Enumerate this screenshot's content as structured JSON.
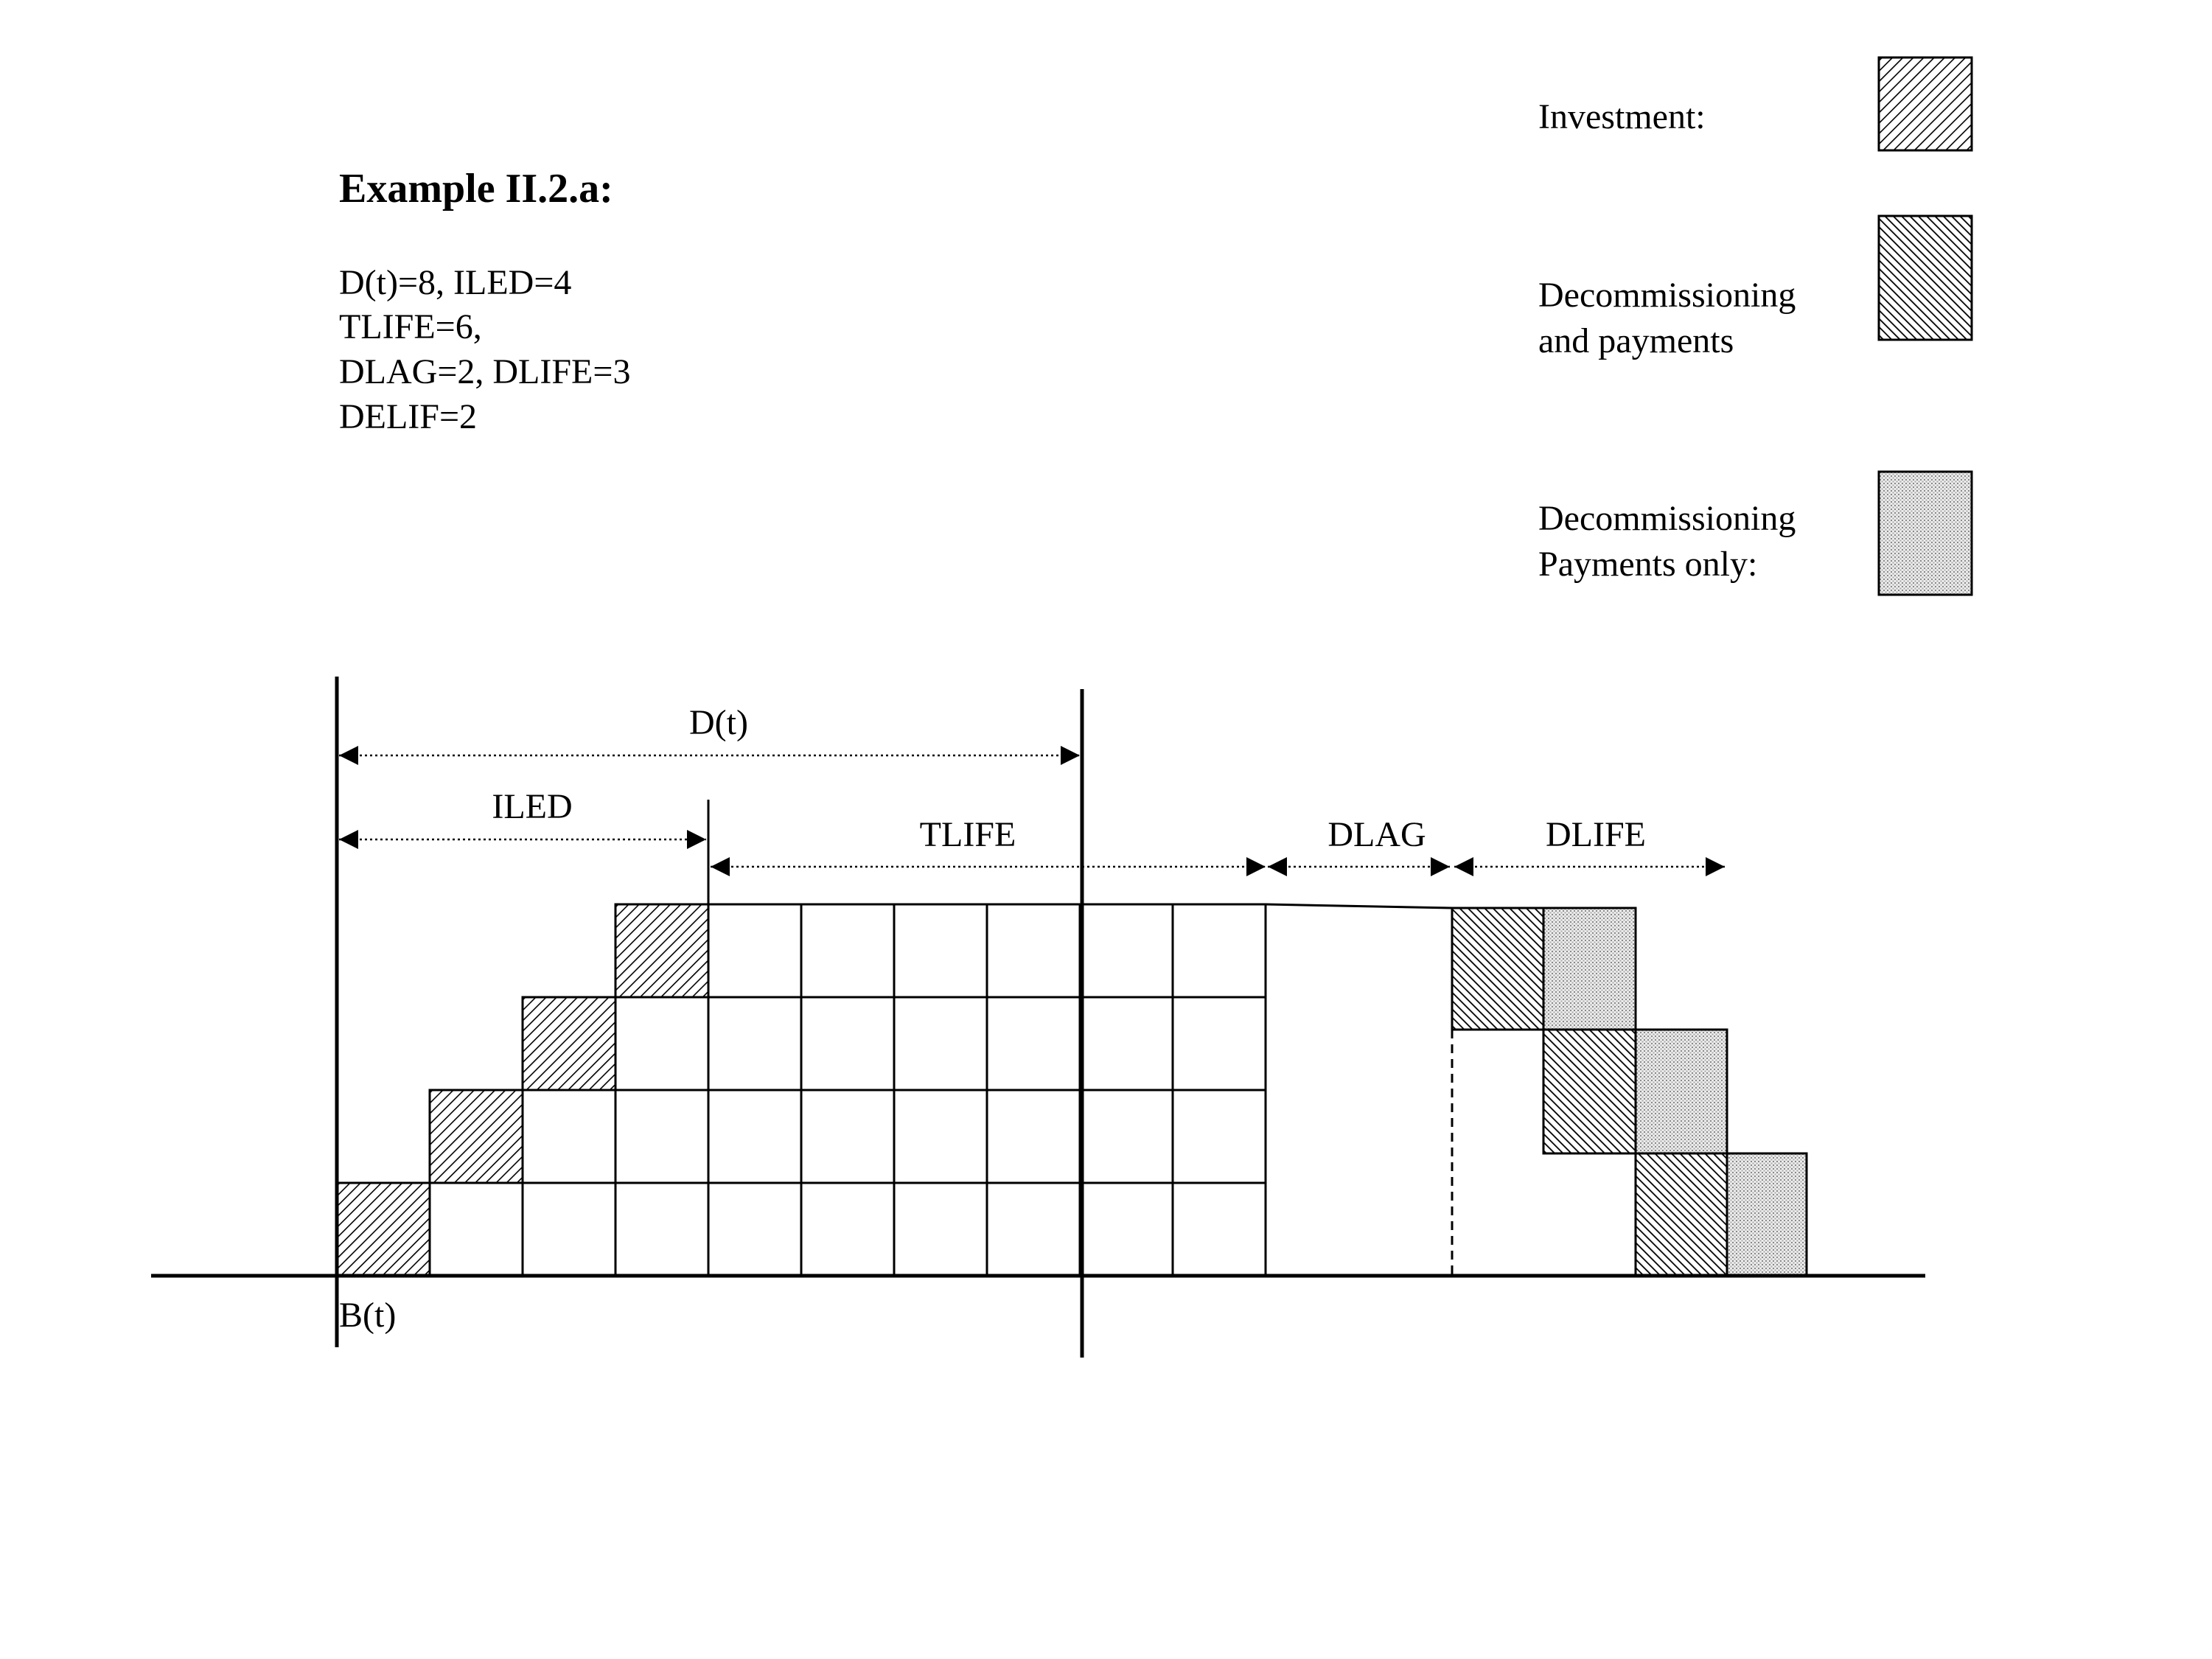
{
  "example": {
    "title": "Example II.2.a:",
    "params": [
      "D(t)=8, ILED=4",
      "TLIFE=6,",
      "DLAG=2, DLIFE=3",
      "DELIF=2"
    ]
  },
  "legend": {
    "investment": "Investment:",
    "decom_payments_line1": "Decommissioning",
    "decom_payments_line2": "and payments",
    "decom_only_line1": "Decommissioning",
    "decom_only_line2": "Payments only:"
  },
  "diagram": {
    "dt_label": "D(t)",
    "iled_label": "ILED",
    "tlife_label": "TLIFE",
    "dlag_label": "DLAG",
    "dlife_label": "DLIFE",
    "bt_label": "B(t)"
  },
  "colors": {
    "stroke": "#000000",
    "light_fill": "#e0e0e0"
  }
}
